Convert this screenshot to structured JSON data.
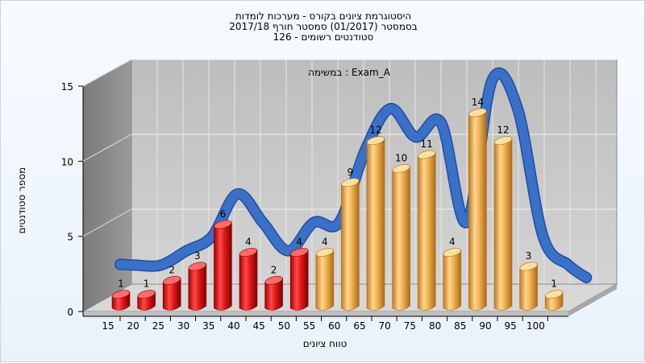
{
  "chart_data": {
    "type": "bar",
    "title": "היסטוגרמת ציונים בקורס - מערכות לומדות",
    "subtitle1": "בסמסטר  (01/2017)  סמסטר חורף 2017/18",
    "subtitle2": "סטודנטים רשומים - 126",
    "annotation": "במשימה : Exam_A",
    "xlabel": "טווח ציונים",
    "ylabel": "מספר סטודנטים",
    "categories": [
      "15",
      "20",
      "25",
      "30",
      "35",
      "40",
      "45",
      "50",
      "55",
      "60",
      "65",
      "70",
      "75",
      "80",
      "85",
      "90",
      "95",
      "100"
    ],
    "values": [
      1,
      1,
      2,
      3,
      6,
      4,
      2,
      4,
      4,
      9,
      12,
      10,
      11,
      4,
      14,
      12,
      3,
      1
    ],
    "fail_categories": [
      "15",
      "20",
      "25",
      "30",
      "35",
      "40",
      "45",
      "50"
    ],
    "yticks": [
      0,
      5,
      10,
      15
    ],
    "ylim": [
      0,
      15
    ],
    "grid": true,
    "legend": "none",
    "curve": "smoothed distribution trend (blue ribbon)",
    "colors": {
      "fail_bar": "#e02020",
      "pass_bar": "#f0b050",
      "curve": "#3a70c8",
      "back_wall": "#c8c8c8",
      "side_wall": "#8a8a8a",
      "floor": "#d8d8d8"
    }
  }
}
